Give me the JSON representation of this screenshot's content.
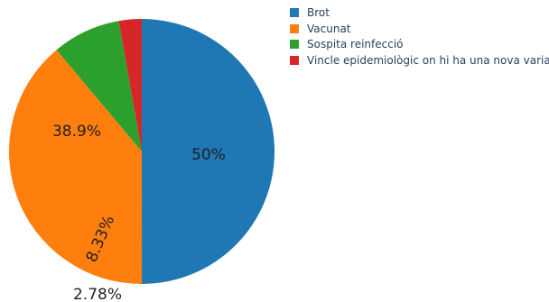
{
  "chart_data": {
    "type": "pie",
    "title": "",
    "categories": [
      "Brot",
      "Vacunat",
      "Sospita reinfecció",
      "Vincle epidemiològic on hi ha una nova variant"
    ],
    "values": [
      50,
      38.9,
      8.33,
      2.78
    ],
    "labels": [
      "50%",
      "38.9%",
      "8.33%",
      "2.78%"
    ],
    "colors": [
      "#1f77b4",
      "#ff7f0e",
      "#2ca02c",
      "#d62728"
    ],
    "legend": "top-right",
    "direction": "clockwise",
    "start": "top"
  }
}
